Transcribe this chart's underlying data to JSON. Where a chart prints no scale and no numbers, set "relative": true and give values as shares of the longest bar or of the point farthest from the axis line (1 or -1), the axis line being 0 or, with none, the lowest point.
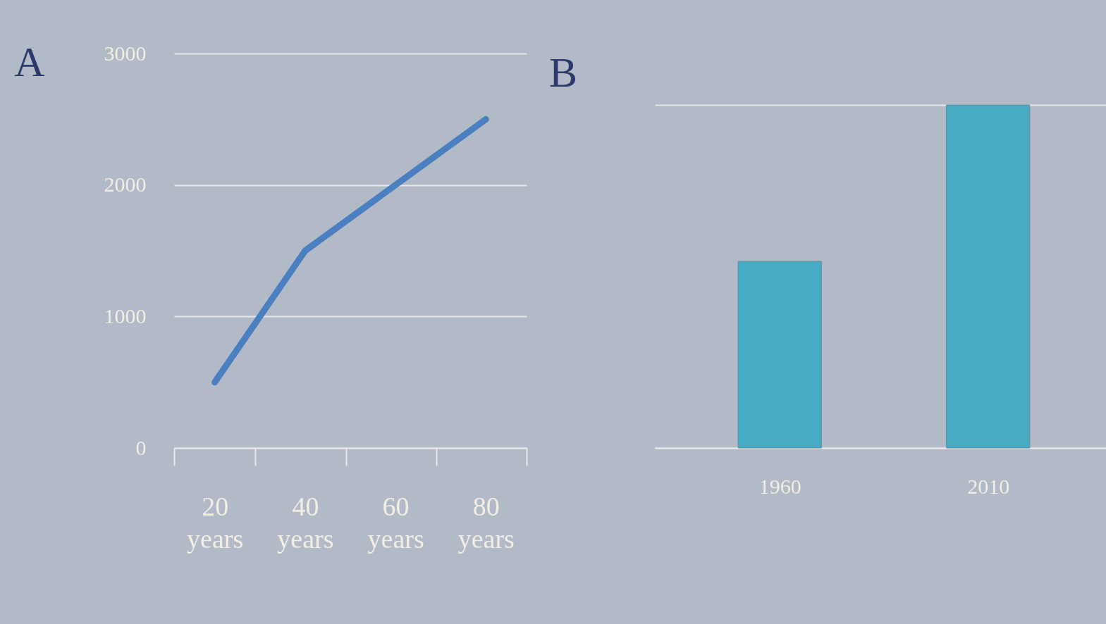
{
  "chart_data": [
    {
      "type": "line",
      "title": "A",
      "categories": [
        "20 years",
        "40 years",
        "60 years",
        "80 years"
      ],
      "values": [
        500,
        1500,
        2000,
        2500
      ],
      "color": "#4a7fc0",
      "ylim": [
        0,
        3000
      ],
      "yticks": [
        0,
        1000,
        2000,
        3000
      ],
      "grid": "y"
    },
    {
      "type": "bar",
      "title": "B",
      "categories": [
        "1960",
        "2010"
      ],
      "values": [
        0.544,
        1
      ],
      "color": "#48abc5",
      "relative": true
    }
  ]
}
